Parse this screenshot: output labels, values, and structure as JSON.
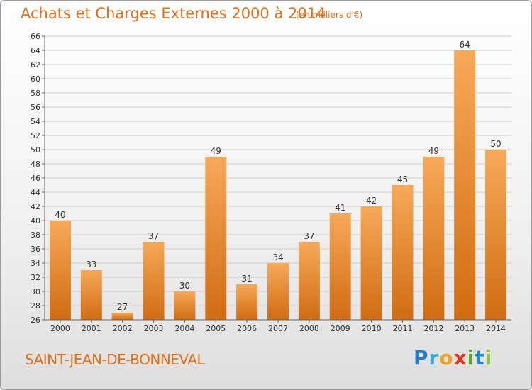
{
  "header": {
    "title": "Achats et Charges Externes 2000 à 2014",
    "subtitle": "(en milliers d'€)"
  },
  "footer": {
    "commune": "SAINT-JEAN-DE-BONNEVAL",
    "logo": [
      {
        "ch": "P",
        "color": "#2a7ac0"
      },
      {
        "ch": "r",
        "color": "#3aa7dd"
      },
      {
        "ch": "o",
        "color": "#f0a020"
      },
      {
        "ch": "x",
        "color": "#e8341c"
      },
      {
        "ch": "i",
        "color": "#5aaa2a"
      },
      {
        "ch": "t",
        "color": "#1e8ad0"
      },
      {
        "ch": "i",
        "color": "#8cc43a"
      }
    ]
  },
  "colors": {
    "bar_light": "#f7a959",
    "bar_dark": "#d06c12",
    "grid": "#cccccc",
    "label": "#333333"
  },
  "chart_data": {
    "type": "bar",
    "title": "Achats et Charges Externes 2000 à 2014",
    "subtitle": "(en milliers d'€)",
    "categories": [
      "2000",
      "2001",
      "2002",
      "2003",
      "2004",
      "2005",
      "2006",
      "2007",
      "2008",
      "2009",
      "2010",
      "2011",
      "2012",
      "2013",
      "2014"
    ],
    "values": [
      40,
      33,
      27,
      37,
      30,
      49,
      31,
      34,
      37,
      41,
      42,
      45,
      49,
      64,
      50
    ],
    "ylim": [
      26,
      66
    ],
    "yticks": [
      26,
      28,
      30,
      32,
      34,
      36,
      38,
      40,
      42,
      44,
      46,
      48,
      50,
      52,
      54,
      56,
      58,
      60,
      62,
      64,
      66
    ],
    "grid": true,
    "data_labels": true
  }
}
